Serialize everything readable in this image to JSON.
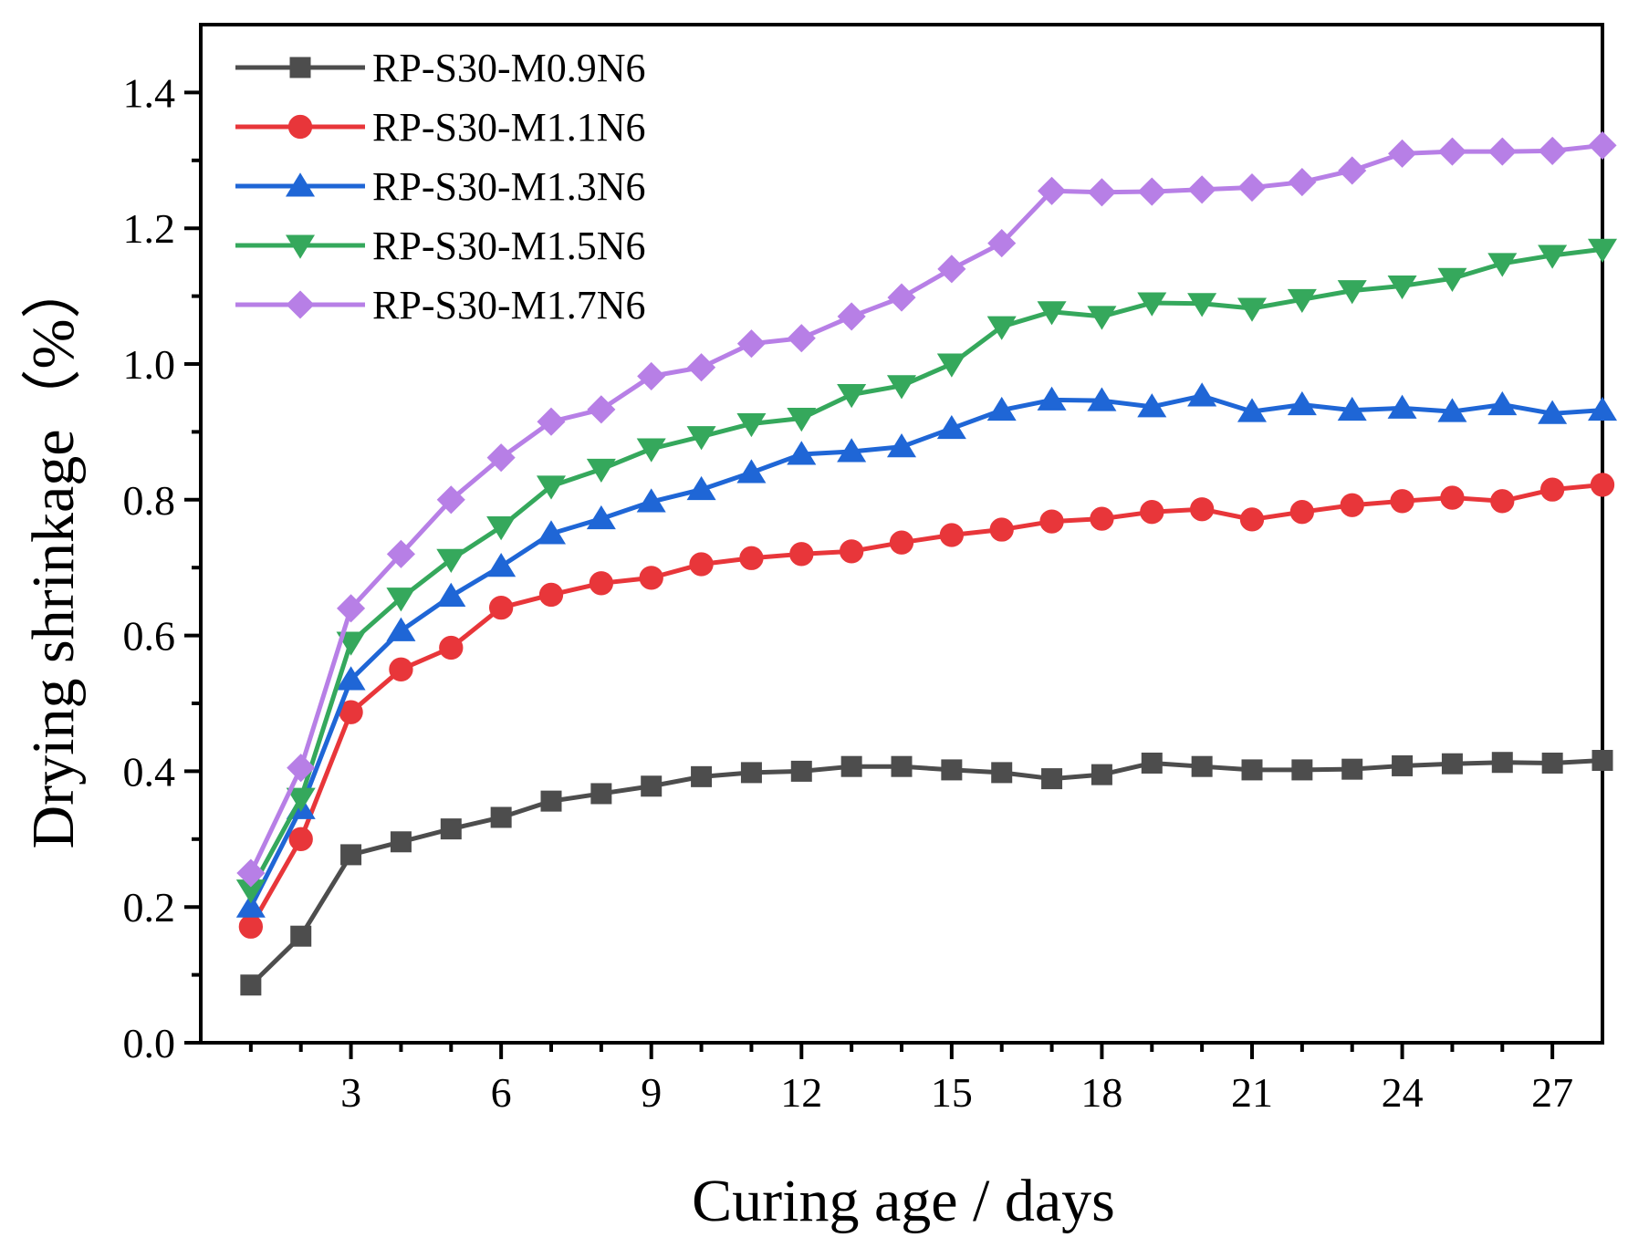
{
  "chart_data": {
    "type": "line",
    "title": "",
    "xlabel": "Curing age / days",
    "ylabel": "Drying shrinkage（%）",
    "xlim": [
      0,
      28
    ],
    "ylim": [
      0,
      1.5
    ],
    "xticks": [
      3,
      6,
      9,
      12,
      15,
      18,
      21,
      24,
      27
    ],
    "xtick_labels": [
      "3",
      "6",
      "9",
      "12",
      "15",
      "18",
      "21",
      "24",
      "27"
    ],
    "yticks": [
      0,
      0.2,
      0.4,
      0.6,
      0.8,
      1.0,
      1.2,
      1.4
    ],
    "ytick_labels": [
      "0.0",
      "0.2",
      "0.4",
      "0.6",
      "0.8",
      "1.0",
      "1.2",
      "1.4"
    ],
    "legend_position": "top-left",
    "grid": false,
    "x": [
      1,
      2,
      3,
      4,
      5,
      6,
      7,
      8,
      9,
      10,
      11,
      12,
      13,
      14,
      15,
      16,
      17,
      18,
      19,
      20,
      21,
      22,
      23,
      24,
      25,
      26,
      27,
      28
    ],
    "series": [
      {
        "name": "RP-S30-M0.9N6",
        "color": "#4d4d4d",
        "marker": "square",
        "values": [
          0.085,
          0.157,
          0.277,
          0.296,
          0.315,
          0.332,
          0.356,
          0.367,
          0.378,
          0.392,
          0.398,
          0.4,
          0.407,
          0.407,
          0.402,
          0.398,
          0.389,
          0.395,
          0.412,
          0.407,
          0.402,
          0.402,
          0.403,
          0.408,
          0.411,
          0.413,
          0.412,
          0.416
        ]
      },
      {
        "name": "RP-S30-M1.1N6",
        "color": "#e8363a",
        "marker": "circle",
        "values": [
          0.171,
          0.3,
          0.487,
          0.55,
          0.582,
          0.641,
          0.66,
          0.677,
          0.685,
          0.705,
          0.714,
          0.72,
          0.724,
          0.737,
          0.748,
          0.756,
          0.768,
          0.772,
          0.782,
          0.786,
          0.771,
          0.782,
          0.792,
          0.798,
          0.803,
          0.798,
          0.815,
          0.822
        ]
      },
      {
        "name": "RP-S30-M1.3N6",
        "color": "#1f66d6",
        "marker": "triangle-up",
        "values": [
          0.2,
          0.345,
          0.535,
          0.607,
          0.658,
          0.702,
          0.75,
          0.772,
          0.797,
          0.815,
          0.84,
          0.867,
          0.871,
          0.878,
          0.905,
          0.932,
          0.947,
          0.946,
          0.937,
          0.953,
          0.93,
          0.94,
          0.932,
          0.935,
          0.93,
          0.94,
          0.927,
          0.932
        ]
      },
      {
        "name": "RP-S30-M1.5N6",
        "color": "#35a85c",
        "marker": "triangle-down",
        "values": [
          0.225,
          0.36,
          0.59,
          0.655,
          0.712,
          0.76,
          0.82,
          0.845,
          0.875,
          0.893,
          0.912,
          0.92,
          0.955,
          0.968,
          1.0,
          1.055,
          1.077,
          1.07,
          1.09,
          1.089,
          1.082,
          1.095,
          1.108,
          1.115,
          1.126,
          1.148,
          1.16,
          1.169
        ]
      },
      {
        "name": "RP-S30-M1.7N6",
        "color": "#b77fe6",
        "marker": "diamond",
        "values": [
          0.25,
          0.405,
          0.64,
          0.72,
          0.8,
          0.862,
          0.915,
          0.933,
          0.982,
          0.995,
          1.03,
          1.038,
          1.07,
          1.098,
          1.14,
          1.178,
          1.255,
          1.253,
          1.254,
          1.257,
          1.26,
          1.268,
          1.285,
          1.31,
          1.313,
          1.313,
          1.314,
          1.322
        ]
      }
    ]
  }
}
